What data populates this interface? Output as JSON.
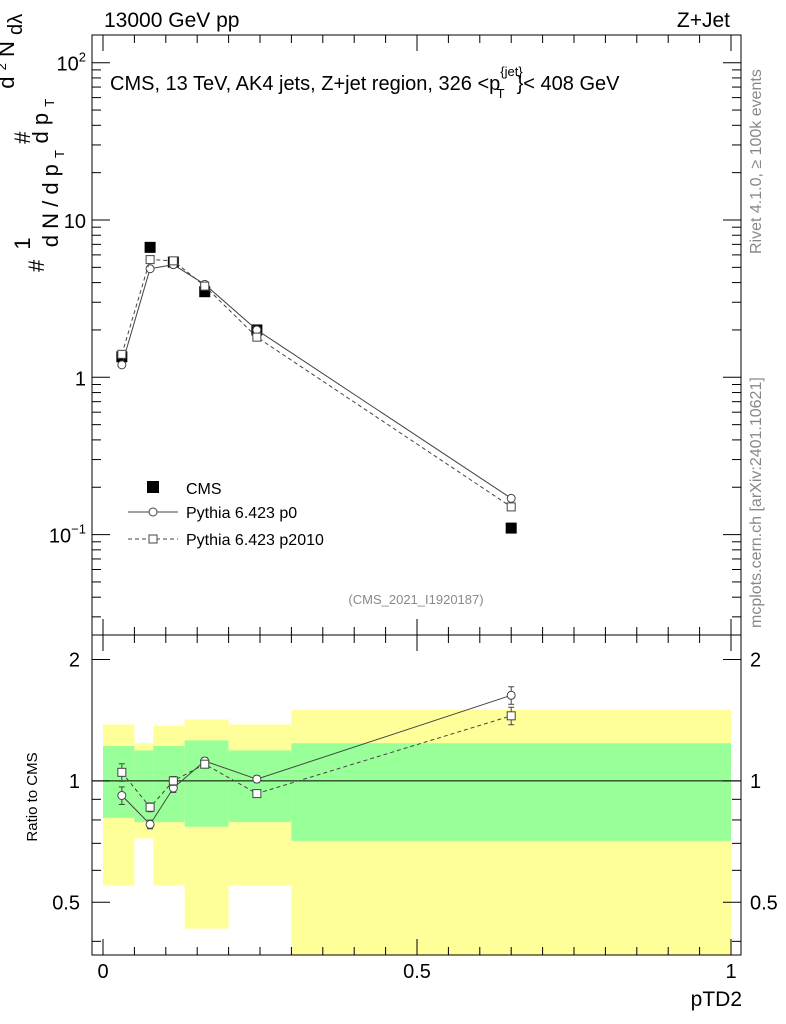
{
  "header": {
    "left": "13000 GeV pp",
    "right": "Z+Jet"
  },
  "side_labels": {
    "rivet": "Rivet 4.1.0, ≥ 100k events",
    "mcplots": "mcplots.cern.ch [arXiv:2401.10621]"
  },
  "chart_data": {
    "type": "scatter",
    "title": "CMS, 13 TeV, AK4 jets, Z+jet region, 326 <p",
    "title_sup": "{jet}",
    "title_sub": "T",
    "title_end": "}< 408 GeV",
    "analysis_id": "(CMS_2021_I1920187)",
    "xlabel": "pTD2",
    "ylabel_parts": [
      "#",
      "1",
      "d N / d p",
      "T",
      "#",
      "d p",
      "T",
      "d",
      "2",
      "N",
      "dλ"
    ],
    "ratio_ylabel": "Ratio to CMS",
    "xlim": [
      0,
      1
    ],
    "ylim_main": [
      0.023,
      150
    ],
    "ylim_ratio": [
      0.37,
      2.3
    ],
    "x_ticks": [
      0,
      0.5,
      1
    ],
    "x_tick_labels": [
      "0",
      "0.5",
      "1"
    ],
    "main_y_ticks": [
      {
        "value": 100,
        "base": "10",
        "exp": "2"
      },
      {
        "value": 10,
        "base": "10",
        "exp": ""
      },
      {
        "value": 1,
        "base": "1",
        "exp": ""
      },
      {
        "value": 0.1,
        "base": "10",
        "exp": "−1"
      }
    ],
    "ratio_y_ticks": [
      {
        "value": 2,
        "label": "2"
      },
      {
        "value": 1,
        "label": "1"
      },
      {
        "value": 0.5,
        "label": "0.5"
      }
    ],
    "bins": [
      {
        "lo": 0.0,
        "hi": 0.05
      },
      {
        "lo": 0.05,
        "hi": 0.08
      },
      {
        "lo": 0.08,
        "hi": 0.13
      },
      {
        "lo": 0.13,
        "hi": 0.2
      },
      {
        "lo": 0.2,
        "hi": 0.3
      },
      {
        "lo": 0.3,
        "hi": 1.0
      }
    ],
    "x": [
      0.03,
      0.075,
      0.112,
      0.162,
      0.245,
      0.65
    ],
    "series": [
      {
        "name": "CMS",
        "style": "data",
        "values": [
          1.35,
          6.7,
          5.4,
          3.5,
          2.0,
          0.11
        ]
      },
      {
        "name": "Pythia 6.423 p0",
        "style": "solid-circle",
        "values": [
          1.2,
          4.9,
          5.2,
          3.9,
          2.0,
          0.17
        ],
        "ratio": [
          0.92,
          0.78,
          0.96,
          1.12,
          1.01,
          1.63
        ],
        "ratio_err": [
          0.05,
          0.025,
          0.025,
          0.02,
          0.02,
          0.05
        ]
      },
      {
        "name": "Pythia 6.423 p2010",
        "style": "dashed-square",
        "values": [
          1.4,
          5.6,
          5.5,
          3.8,
          1.8,
          0.15
        ],
        "ratio": [
          1.05,
          0.86,
          1.0,
          1.1,
          0.93,
          1.45
        ],
        "ratio_err": [
          0.05,
          0.025,
          0.025,
          0.02,
          0.02,
          0.05
        ]
      }
    ],
    "ratio_band_green": [
      {
        "lo": 0.81,
        "hi": 1.22
      },
      {
        "lo": 0.79,
        "hi": 1.19
      },
      {
        "lo": 0.79,
        "hi": 1.22
      },
      {
        "lo": 0.77,
        "hi": 1.26
      },
      {
        "lo": 0.79,
        "hi": 1.19
      },
      {
        "lo": 0.71,
        "hi": 1.24
      }
    ],
    "ratio_band_yellow": [
      {
        "lo": 0.55,
        "hi": 1.38
      },
      {
        "lo": 0.72,
        "hi": 1.24
      },
      {
        "lo": 0.55,
        "hi": 1.37
      },
      {
        "lo": 0.43,
        "hi": 1.42
      },
      {
        "lo": 0.55,
        "hi": 1.38
      },
      {
        "lo": 0.37,
        "hi": 1.5
      }
    ],
    "legend_position": "bottom-left",
    "colors": {
      "green_band": "#99ff99",
      "yellow_band": "#ffff99",
      "line": "#000000",
      "mc_line": "#444444"
    }
  }
}
